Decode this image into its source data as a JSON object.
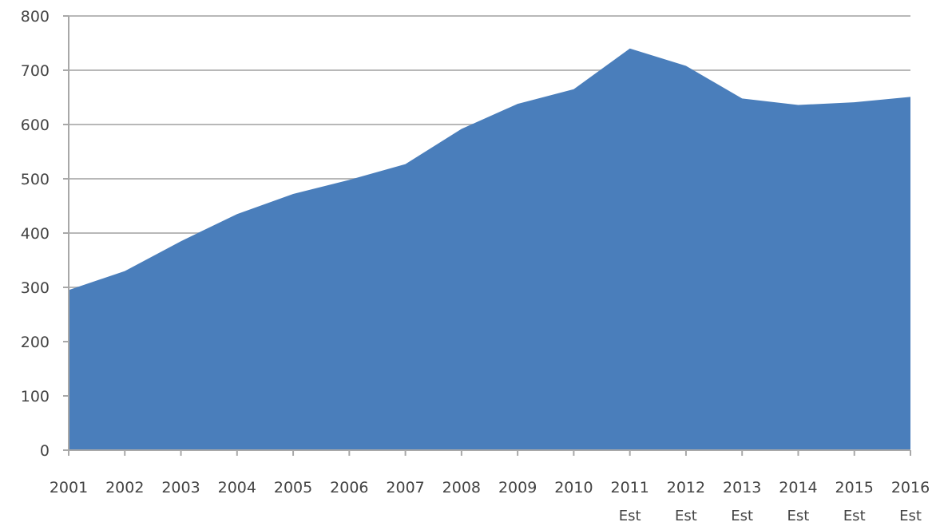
{
  "chart_data": {
    "type": "area",
    "title": "",
    "xlabel": "",
    "ylabel": "",
    "ylim": [
      0,
      800
    ],
    "yticks": [
      0,
      100,
      200,
      300,
      400,
      500,
      600,
      700,
      800
    ],
    "grid": true,
    "categories": [
      "2001",
      "2002",
      "2003",
      "2004",
      "2005",
      "2006",
      "2007",
      "2008",
      "2009",
      "2010",
      "2011",
      "2012",
      "2013",
      "2014",
      "2015",
      "2016"
    ],
    "category_sublabels": [
      "",
      "",
      "",
      "",
      "",
      "",
      "",
      "",
      "",
      "",
      "Est",
      "Est",
      "Est",
      "Est",
      "Est",
      "Est"
    ],
    "series": [
      {
        "values": [
          295,
          330,
          385,
          435,
          472,
          498,
          527,
          592,
          638,
          665,
          740,
          708,
          648,
          636,
          641,
          651
        ],
        "color": "#4a7ebb"
      }
    ]
  }
}
